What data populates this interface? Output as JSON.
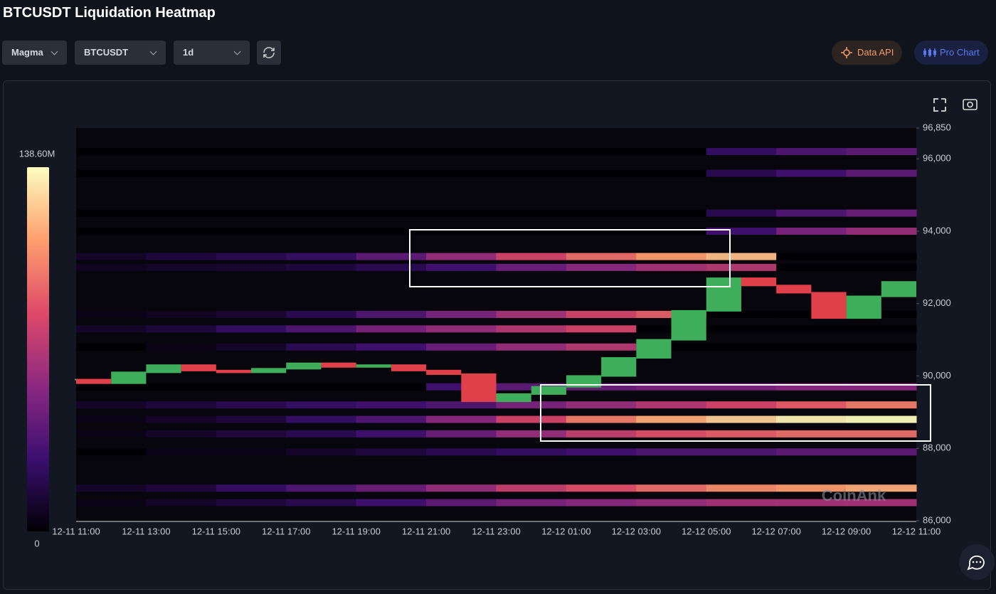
{
  "header": {
    "title": "BTCUSDT Liquidation Heatmap",
    "controls": [
      "Magma",
      "BTCUSDT",
      "1d"
    ],
    "buttons": [
      "Data API",
      "Pro Chart"
    ]
  },
  "chart_data": {
    "type": "heatmap",
    "x": [
      "12-11 11:00",
      null,
      "12-11 13:00",
      null,
      "12-11 15:00",
      null,
      "12-11 17:00",
      null,
      "12-11 19:00",
      null,
      "12-11 21:00",
      null,
      "12-11 23:00",
      null,
      "12-12 01:00",
      null,
      "12-12 03:00",
      null,
      "12-12 05:00",
      null,
      "12-12 07:00",
      null,
      "12-12 09:00",
      null,
      "12-12 11:00"
    ],
    "price": [
      89900,
      89800,
      90100,
      90300,
      90150,
      90100,
      90200,
      90350,
      90250,
      90300,
      90150,
      90050,
      89300,
      89500,
      89700,
      90000,
      90500,
      91000,
      91800,
      92700,
      92500,
      92300,
      91600,
      92200,
      92600
    ],
    "up_color": "#3fae5a",
    "down_color": "#e0404a",
    "ylim": [
      86000,
      96850
    ],
    "yticks": [
      {
        "value": 96850,
        "label": "96,850"
      },
      {
        "value": 96000,
        "label": "96,000"
      },
      {
        "value": 94000,
        "label": "94,000"
      },
      {
        "value": 92000,
        "label": "92,000"
      },
      {
        "value": 90000,
        "label": "90,000"
      },
      {
        "value": 88000,
        "label": "88,000"
      },
      {
        "value": 86000,
        "label": "86,000"
      }
    ],
    "colorbar": {
      "min": 0,
      "max": {
        "value": 138.6,
        "label": "138.60M"
      }
    },
    "bands": [
      {
        "price": 96200,
        "values": [
          0,
          0,
          0,
          0,
          0,
          0,
          0,
          0,
          0,
          25,
          35,
          40
        ]
      },
      {
        "price": 95600,
        "values": [
          0,
          0,
          0,
          0,
          0,
          0,
          0,
          0,
          0,
          20,
          30,
          40
        ]
      },
      {
        "price": 94500,
        "values": [
          0,
          0,
          0,
          0,
          0,
          0,
          0,
          0,
          0,
          20,
          35,
          45
        ]
      },
      {
        "price": 94000,
        "values": [
          0,
          0,
          0,
          0,
          0,
          0,
          0,
          0,
          0,
          30,
          50,
          60
        ]
      },
      {
        "price": 93300,
        "values": [
          10,
          15,
          20,
          25,
          40,
          60,
          80,
          95,
          110,
          120,
          0,
          0
        ]
      },
      {
        "price": 93000,
        "values": [
          8,
          10,
          12,
          15,
          20,
          30,
          45,
          55,
          65,
          70,
          0,
          0
        ]
      },
      {
        "price": 91700,
        "values": [
          5,
          8,
          12,
          20,
          35,
          50,
          65,
          80,
          90,
          0,
          0,
          0
        ]
      },
      {
        "price": 91300,
        "values": [
          10,
          15,
          25,
          35,
          50,
          60,
          70,
          80,
          0,
          0,
          0,
          0
        ]
      },
      {
        "price": 90800,
        "values": [
          0,
          5,
          10,
          20,
          30,
          45,
          60,
          70,
          0,
          0,
          0,
          0
        ]
      },
      {
        "price": 89700,
        "values": [
          0,
          0,
          0,
          0,
          0,
          30,
          40,
          45,
          50,
          50,
          55,
          55
        ]
      },
      {
        "price": 89200,
        "values": [
          10,
          15,
          20,
          25,
          30,
          35,
          50,
          60,
          70,
          80,
          90,
          100
        ]
      },
      {
        "price": 88800,
        "values": [
          5,
          10,
          15,
          25,
          35,
          55,
          80,
          100,
          115,
          125,
          135,
          138
        ]
      },
      {
        "price": 88400,
        "values": [
          5,
          10,
          15,
          20,
          30,
          45,
          60,
          75,
          85,
          90,
          95,
          95
        ]
      },
      {
        "price": 87900,
        "values": [
          0,
          5,
          5,
          10,
          15,
          20,
          25,
          30,
          35,
          35,
          40,
          40
        ]
      },
      {
        "price": 86900,
        "values": [
          10,
          15,
          25,
          35,
          45,
          60,
          75,
          85,
          95,
          105,
          110,
          115
        ]
      },
      {
        "price": 86500,
        "values": [
          5,
          10,
          15,
          20,
          30,
          40,
          50,
          55,
          60,
          65,
          65,
          65
        ]
      }
    ],
    "watermark": "CoinAnk"
  }
}
